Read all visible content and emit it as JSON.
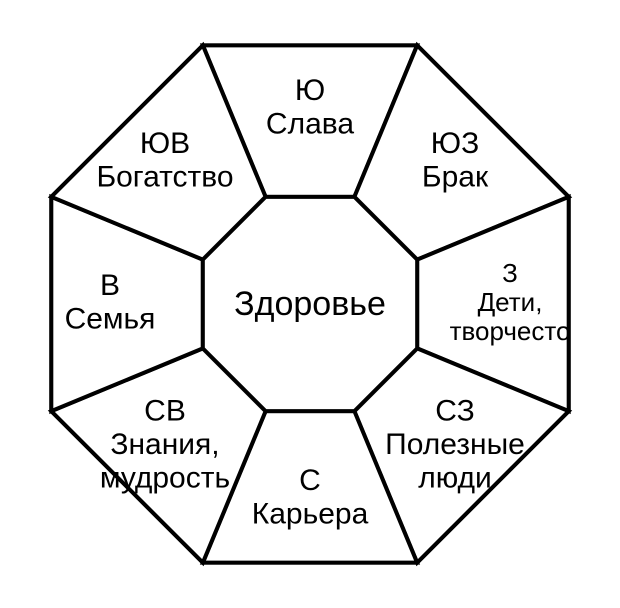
{
  "diagram": {
    "type": "octagon-bagua",
    "background_color": "#ffffff",
    "stroke_color": "#000000",
    "stroke_width": 4,
    "font_family": "Arial",
    "center_label": "Здоровье",
    "center_fontsize": 34,
    "seg_dir_fontsize": 30,
    "seg_word_fontsize": 30,
    "segments": {
      "top": {
        "dir": "Ю",
        "lines": [
          "Слава"
        ]
      },
      "top_right": {
        "dir": "ЮЗ",
        "lines": [
          "Брак"
        ]
      },
      "right": {
        "dir": "З",
        "lines": [
          "Дети,",
          "творчесто"
        ]
      },
      "bottom_right": {
        "dir": "СЗ",
        "lines": [
          "Полезные",
          "люди"
        ]
      },
      "bottom": {
        "dir": "С",
        "lines": [
          "Карьера"
        ]
      },
      "bottom_left": {
        "dir": "СВ",
        "lines": [
          "Знания,",
          "мудрость"
        ]
      },
      "left": {
        "dir": "В",
        "lines": [
          "Семья"
        ]
      },
      "top_left": {
        "dir": "ЮВ",
        "lines": [
          "Богатство"
        ]
      }
    },
    "right_fontsize_override": 26
  }
}
